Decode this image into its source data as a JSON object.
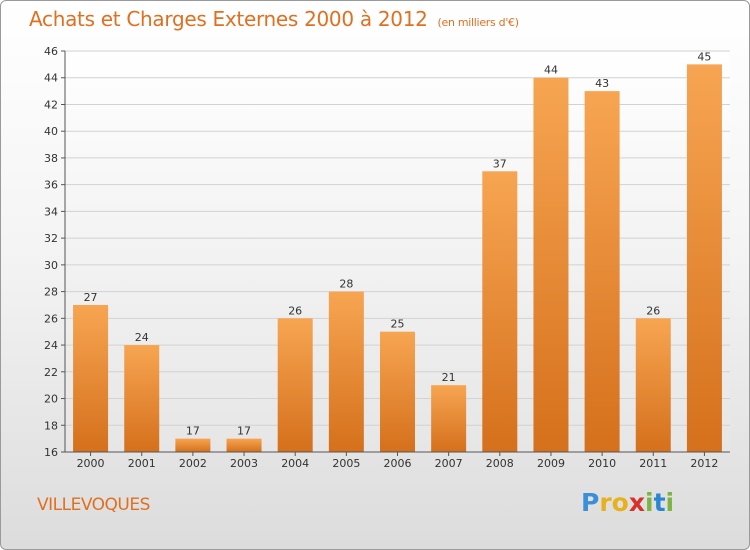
{
  "title": "Achats et Charges Externes 2000 à 2012",
  "subtitle": "(en milliers d'€)",
  "location": "VILLEVOQUES",
  "brand": {
    "letters": [
      "P",
      "r",
      "o",
      "x",
      "i",
      "t",
      "i"
    ],
    "colors": [
      "#3b8fd8",
      "#e8b11c",
      "#e8b11c",
      "#d8312a",
      "#7cb542",
      "#2b86d1",
      "#7cb542"
    ]
  },
  "colors": {
    "accent": "#e07020",
    "bar_light": "#f6a54f",
    "bar_dark": "#d8741e"
  },
  "chart_data": {
    "type": "bar",
    "title": "Achats et Charges Externes 2000 à 2012",
    "subtitle": "(en milliers d'€)",
    "categories": [
      "2000",
      "2001",
      "2002",
      "2003",
      "2004",
      "2005",
      "2006",
      "2007",
      "2008",
      "2009",
      "2010",
      "2011",
      "2012"
    ],
    "values": [
      27,
      24,
      17,
      17,
      26,
      28,
      25,
      21,
      37,
      44,
      43,
      26,
      45
    ],
    "ylim": [
      16,
      46
    ],
    "yticks": [
      16,
      18,
      20,
      22,
      24,
      26,
      28,
      30,
      32,
      34,
      36,
      38,
      40,
      42,
      44,
      46
    ],
    "grid": true,
    "legend": "none"
  }
}
